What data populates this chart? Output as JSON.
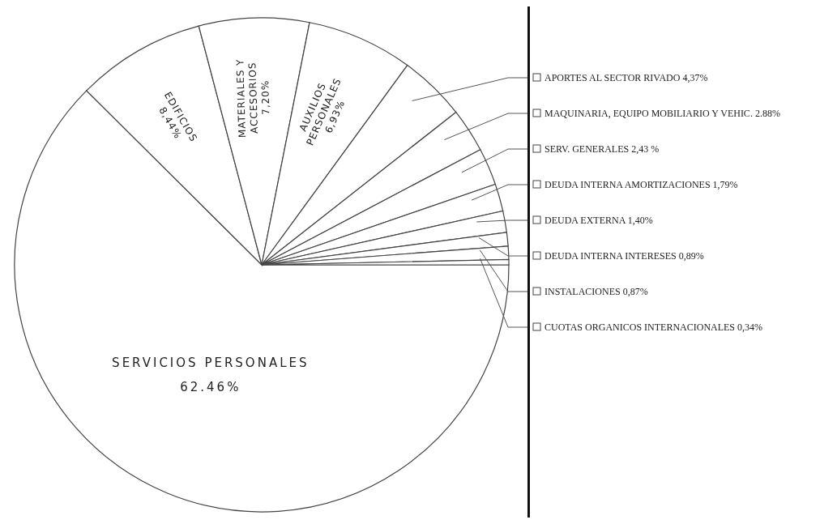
{
  "chart_data": {
    "type": "pie",
    "categories": [
      "SERVICIOS PERSONALES",
      "EDIFICIOS",
      "MATERIALES Y ACCESORIOS",
      "AUXILIOS PERSONALES",
      "APORTES AL SECTOR RIVADO",
      "MAQUINARIA, EQUIPO MOBILIARIO Y VEHIC.",
      "SERV. GENERALES",
      "DEUDA INTERNA AMORTIZACIONES",
      "DEUDA EXTERNA",
      "DEUDA INTERNA INTERESES",
      "INSTALACIONES",
      "CUOTAS ORGANICOS INTERNACIONALES"
    ],
    "values": [
      62.46,
      8.44,
      7.2,
      6.93,
      4.37,
      2.88,
      2.43,
      1.79,
      1.4,
      0.89,
      0.87,
      0.34
    ],
    "value_labels": [
      "62.46%",
      "8,44%",
      "7,20%",
      "6,93%",
      "4,37%",
      "2.88%",
      "2,43 %",
      "1,79%",
      "1,40%",
      "0,89%",
      "0,87%",
      "0,34%"
    ],
    "legend": "right",
    "colors": [
      "#ffffff",
      "#ffffff",
      "#ffffff",
      "#ffffff",
      "#ffffff",
      "#ffffff",
      "#ffffff",
      "#ffffff",
      "#ffffff",
      "#ffffff",
      "#ffffff",
      "#ffffff"
    ]
  }
}
